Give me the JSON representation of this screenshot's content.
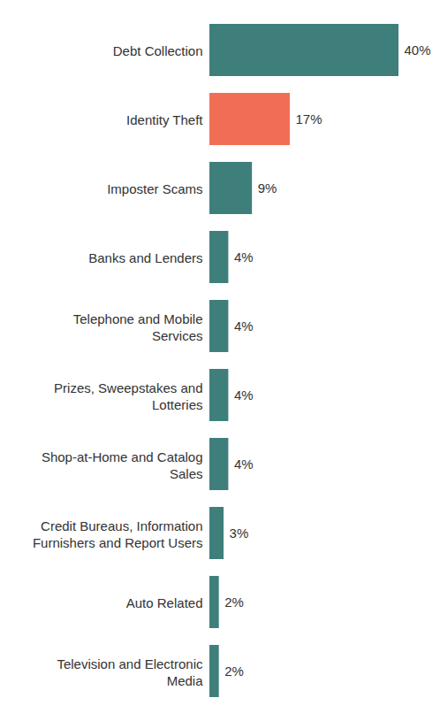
{
  "chart_data": {
    "type": "bar",
    "orientation": "horizontal",
    "categories": [
      "Debt Collection",
      "Identity Theft",
      "Imposter Scams",
      "Banks and Lenders",
      "Telephone and Mobile\nServices",
      "Prizes, Sweepstakes and\nLotteries",
      "Shop-at-Home and Catalog\nSales",
      "Credit Bureaus, Information\nFurnishers and Report Users",
      "Auto Related",
      "Television and Electronic\nMedia"
    ],
    "values": [
      40,
      17,
      9,
      4,
      4,
      4,
      4,
      3,
      2,
      2
    ],
    "value_labels": [
      "40%",
      "17%",
      "9%",
      "4%",
      "4%",
      "4%",
      "4%",
      "3%",
      "2%",
      "2%"
    ],
    "colors": [
      "#3e7f7c",
      "#f26d55",
      "#3e7f7c",
      "#3e7f7c",
      "#3e7f7c",
      "#3e7f7c",
      "#3e7f7c",
      "#3e7f7c",
      "#3e7f7c",
      "#3e7f7c"
    ],
    "xlim": [
      0,
      40
    ],
    "data_labels": true,
    "tick_labels": "y",
    "grid": false
  }
}
